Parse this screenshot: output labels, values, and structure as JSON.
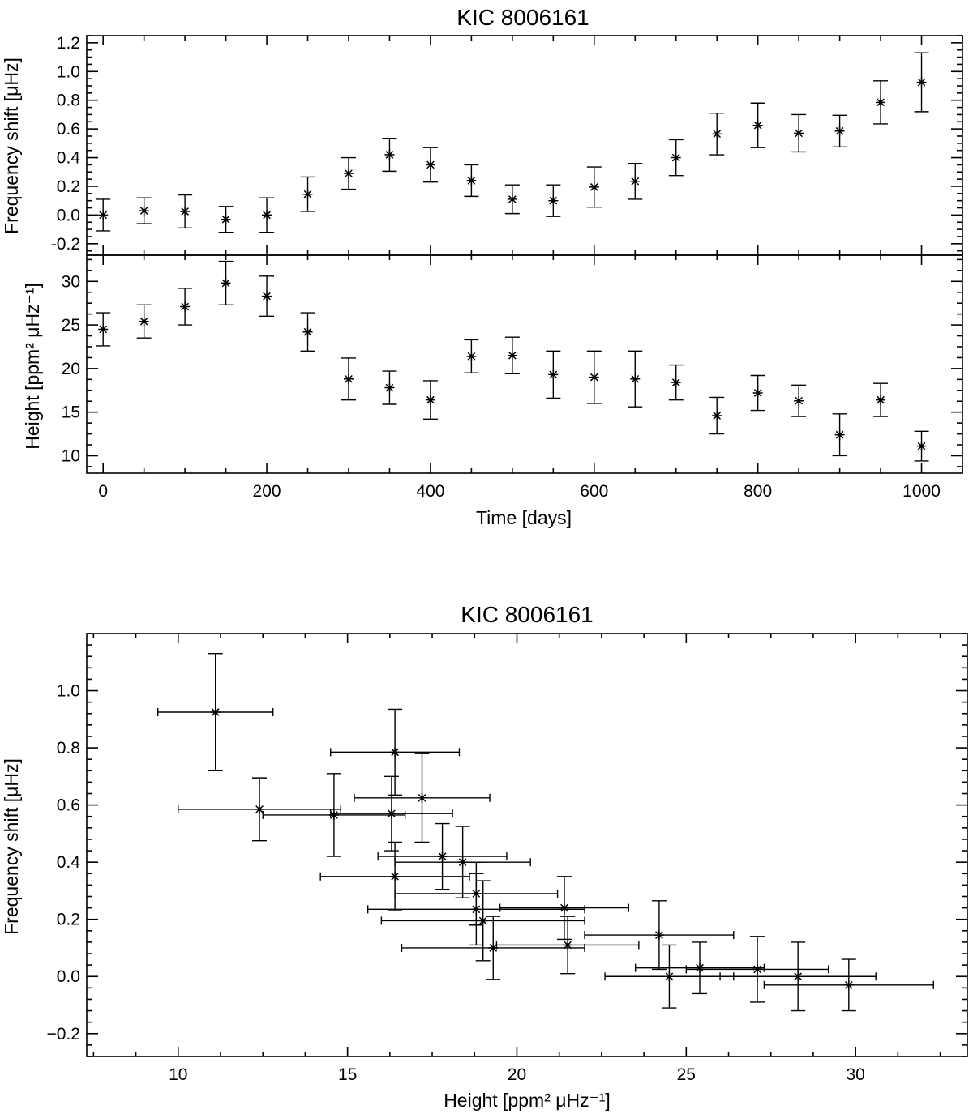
{
  "chart_data": [
    {
      "type": "scatter",
      "title": "KIC 8006161",
      "xlabel": "",
      "ylabel": "Frequency shift [μHz]",
      "xlim": [
        -20,
        1050
      ],
      "ylim": [
        -0.28,
        1.25
      ],
      "xticks": [
        "0",
        "200",
        "400",
        "600",
        "800",
        "1000"
      ],
      "yticks": [
        "-0.2",
        "0.0",
        "0.2",
        "0.4",
        "0.6",
        "0.8",
        "1.0",
        "1.2"
      ],
      "grid": false,
      "points": [
        {
          "x": 0,
          "y": 0.0,
          "yerr": 0.11
        },
        {
          "x": 50,
          "y": 0.03,
          "yerr": 0.09
        },
        {
          "x": 100,
          "y": 0.025,
          "yerr": 0.115
        },
        {
          "x": 150,
          "y": -0.03,
          "yerr": 0.09
        },
        {
          "x": 200,
          "y": 0.0,
          "yerr": 0.12
        },
        {
          "x": 250,
          "y": 0.145,
          "yerr": 0.12
        },
        {
          "x": 300,
          "y": 0.29,
          "yerr": 0.11
        },
        {
          "x": 350,
          "y": 0.42,
          "yerr": 0.115
        },
        {
          "x": 400,
          "y": 0.35,
          "yerr": 0.12
        },
        {
          "x": 450,
          "y": 0.24,
          "yerr": 0.11
        },
        {
          "x": 500,
          "y": 0.11,
          "yerr": 0.1
        },
        {
          "x": 550,
          "y": 0.1,
          "yerr": 0.11
        },
        {
          "x": 600,
          "y": 0.195,
          "yerr": 0.14
        },
        {
          "x": 650,
          "y": 0.235,
          "yerr": 0.125
        },
        {
          "x": 700,
          "y": 0.4,
          "yerr": 0.125
        },
        {
          "x": 750,
          "y": 0.565,
          "yerr": 0.145
        },
        {
          "x": 800,
          "y": 0.625,
          "yerr": 0.155
        },
        {
          "x": 850,
          "y": 0.57,
          "yerr": 0.13
        },
        {
          "x": 900,
          "y": 0.585,
          "yerr": 0.11
        },
        {
          "x": 950,
          "y": 0.785,
          "yerr": 0.15
        },
        {
          "x": 1000,
          "y": 0.925,
          "yerr": 0.205
        }
      ]
    },
    {
      "type": "scatter",
      "title": "",
      "xlabel": "Time [days]",
      "ylabel": "Height [ppm² μHz⁻¹]",
      "xlim": [
        -20,
        1050
      ],
      "ylim": [
        8,
        33
      ],
      "xticks": [
        "0",
        "200",
        "400",
        "600",
        "800",
        "1000"
      ],
      "yticks": [
        "10",
        "15",
        "20",
        "25",
        "30"
      ],
      "grid": false,
      "points": [
        {
          "x": 0,
          "y": 24.5,
          "yerr": 1.9
        },
        {
          "x": 50,
          "y": 25.4,
          "yerr": 1.9
        },
        {
          "x": 100,
          "y": 27.1,
          "yerr": 2.1
        },
        {
          "x": 150,
          "y": 29.8,
          "yerr": 2.5
        },
        {
          "x": 200,
          "y": 28.3,
          "yerr": 2.3
        },
        {
          "x": 250,
          "y": 24.2,
          "yerr": 2.2
        },
        {
          "x": 300,
          "y": 18.8,
          "yerr": 2.4
        },
        {
          "x": 350,
          "y": 17.8,
          "yerr": 1.9
        },
        {
          "x": 400,
          "y": 16.4,
          "yerr": 2.2
        },
        {
          "x": 450,
          "y": 21.4,
          "yerr": 1.9
        },
        {
          "x": 500,
          "y": 21.5,
          "yerr": 2.1
        },
        {
          "x": 550,
          "y": 19.3,
          "yerr": 2.7
        },
        {
          "x": 600,
          "y": 19.0,
          "yerr": 3.0
        },
        {
          "x": 650,
          "y": 18.8,
          "yerr": 3.2
        },
        {
          "x": 700,
          "y": 18.4,
          "yerr": 2.0
        },
        {
          "x": 750,
          "y": 14.6,
          "yerr": 2.1
        },
        {
          "x": 800,
          "y": 17.2,
          "yerr": 2.0
        },
        {
          "x": 850,
          "y": 16.3,
          "yerr": 1.8
        },
        {
          "x": 900,
          "y": 12.4,
          "yerr": 2.4
        },
        {
          "x": 950,
          "y": 16.4,
          "yerr": 1.9
        },
        {
          "x": 1000,
          "y": 11.1,
          "yerr": 1.7
        }
      ]
    },
    {
      "type": "scatter",
      "title": "KIC 8006161",
      "xlabel": "Height [ppm² μHz⁻¹]",
      "ylabel": "Frequency shift [μHz]",
      "xlim": [
        7.3,
        33.3
      ],
      "ylim": [
        -0.28,
        1.2
      ],
      "xticks": [
        "10",
        "15",
        "20",
        "25",
        "30"
      ],
      "yticks": [
        "−0.2",
        "0.0",
        "0.2",
        "0.4",
        "0.6",
        "0.8",
        "1.0"
      ],
      "grid": false,
      "points": [
        {
          "x": 24.5,
          "y": 0.0,
          "xerr": 1.9,
          "yerr": 0.11
        },
        {
          "x": 25.4,
          "y": 0.03,
          "xerr": 1.9,
          "yerr": 0.09
        },
        {
          "x": 27.1,
          "y": 0.025,
          "xerr": 2.1,
          "yerr": 0.115
        },
        {
          "x": 29.8,
          "y": -0.03,
          "xerr": 2.5,
          "yerr": 0.09
        },
        {
          "x": 28.3,
          "y": 0.0,
          "xerr": 2.3,
          "yerr": 0.12
        },
        {
          "x": 24.2,
          "y": 0.145,
          "xerr": 2.2,
          "yerr": 0.12
        },
        {
          "x": 18.8,
          "y": 0.29,
          "xerr": 2.4,
          "yerr": 0.11
        },
        {
          "x": 17.8,
          "y": 0.42,
          "xerr": 1.9,
          "yerr": 0.115
        },
        {
          "x": 16.4,
          "y": 0.35,
          "xerr": 2.2,
          "yerr": 0.12
        },
        {
          "x": 21.4,
          "y": 0.24,
          "xerr": 1.9,
          "yerr": 0.11
        },
        {
          "x": 21.5,
          "y": 0.11,
          "xerr": 2.1,
          "yerr": 0.1
        },
        {
          "x": 19.3,
          "y": 0.1,
          "xerr": 2.7,
          "yerr": 0.11
        },
        {
          "x": 19.0,
          "y": 0.195,
          "xerr": 3.0,
          "yerr": 0.14
        },
        {
          "x": 18.8,
          "y": 0.235,
          "xerr": 3.2,
          "yerr": 0.125
        },
        {
          "x": 18.4,
          "y": 0.4,
          "xerr": 2.0,
          "yerr": 0.125
        },
        {
          "x": 14.6,
          "y": 0.565,
          "xerr": 2.1,
          "yerr": 0.145
        },
        {
          "x": 17.2,
          "y": 0.625,
          "xerr": 2.0,
          "yerr": 0.155
        },
        {
          "x": 16.3,
          "y": 0.57,
          "xerr": 1.8,
          "yerr": 0.13
        },
        {
          "x": 12.4,
          "y": 0.585,
          "xerr": 2.4,
          "yerr": 0.11
        },
        {
          "x": 16.4,
          "y": 0.785,
          "xerr": 1.9,
          "yerr": 0.15
        },
        {
          "x": 11.1,
          "y": 0.925,
          "xerr": 1.7,
          "yerr": 0.205
        }
      ]
    }
  ]
}
